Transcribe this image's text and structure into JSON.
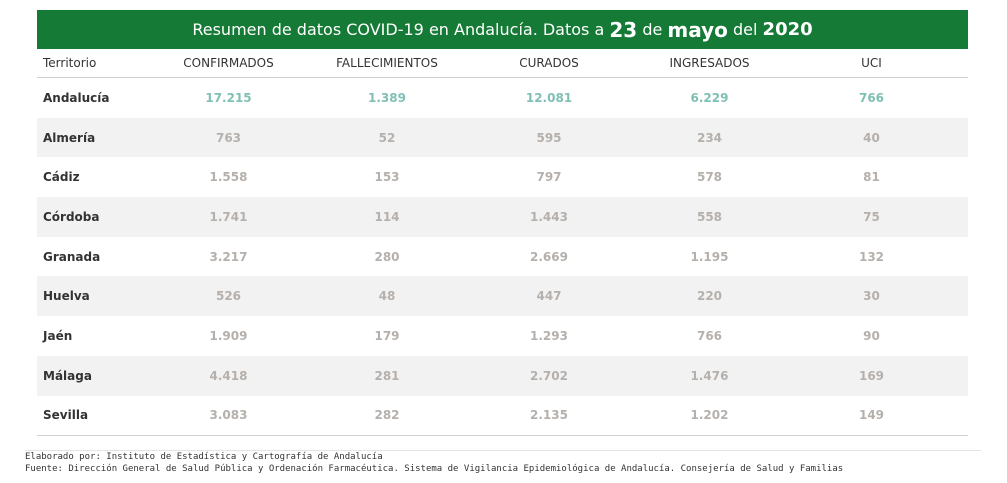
{
  "title": {
    "prefix": "Resumen de datos COVID-19 en Andalucía. Datos a",
    "day": "23",
    "de": "de",
    "month": "mayo",
    "del": "del",
    "year": "2020"
  },
  "columns": [
    "Territorio",
    "CONFIRMADOS",
    "FALLECIMIENTOS",
    "CURADOS",
    "INGRESADOS",
    "UCI"
  ],
  "rows": [
    {
      "territorio": "Andalucía",
      "confirmados": "17.215",
      "fallecimientos": "1.389",
      "curados": "12.081",
      "ingresados": "6.229",
      "uci": "766"
    },
    {
      "territorio": "Almería",
      "confirmados": "763",
      "fallecimientos": "52",
      "curados": "595",
      "ingresados": "234",
      "uci": "40"
    },
    {
      "territorio": "Cádiz",
      "confirmados": "1.558",
      "fallecimientos": "153",
      "curados": "797",
      "ingresados": "578",
      "uci": "81"
    },
    {
      "territorio": "Córdoba",
      "confirmados": "1.741",
      "fallecimientos": "114",
      "curados": "1.443",
      "ingresados": "558",
      "uci": "75"
    },
    {
      "territorio": "Granada",
      "confirmados": "3.217",
      "fallecimientos": "280",
      "curados": "2.669",
      "ingresados": "1.195",
      "uci": "132"
    },
    {
      "territorio": "Huelva",
      "confirmados": "526",
      "fallecimientos": "48",
      "curados": "447",
      "ingresados": "220",
      "uci": "30"
    },
    {
      "territorio": "Jaén",
      "confirmados": "1.909",
      "fallecimientos": "179",
      "curados": "1.293",
      "ingresados": "766",
      "uci": "90"
    },
    {
      "territorio": "Málaga",
      "confirmados": "4.418",
      "fallecimientos": "281",
      "curados": "2.702",
      "ingresados": "1.476",
      "uci": "169"
    },
    {
      "territorio": "Sevilla",
      "confirmados": "3.083",
      "fallecimientos": "282",
      "curados": "2.135",
      "ingresados": "1.202",
      "uci": "149"
    }
  ],
  "footer": {
    "elaborado": "Elaborado por: Instituto de Estadística y Cartografía de Andalucía",
    "fuente": "Fuente: Dirección General de Salud Pública y Ordenación Farmacéutica. Sistema de Vigilancia Epidemiológica de Andalucía. Consejería de Salud y Familias"
  },
  "colors": {
    "banner": "#157a36",
    "total_values": "#7fbfb4",
    "values": "#b5b0ab",
    "stripe": "#f2f2f2"
  },
  "chart_data": {
    "type": "table",
    "categories": [
      "Andalucía",
      "Almería",
      "Cádiz",
      "Córdoba",
      "Granada",
      "Huelva",
      "Jaén",
      "Málaga",
      "Sevilla"
    ],
    "series": [
      {
        "name": "CONFIRMADOS",
        "values": [
          17215,
          763,
          1558,
          1741,
          3217,
          526,
          1909,
          4418,
          3083
        ]
      },
      {
        "name": "FALLECIMIENTOS",
        "values": [
          1389,
          52,
          153,
          114,
          280,
          48,
          179,
          281,
          282
        ]
      },
      {
        "name": "CURADOS",
        "values": [
          12081,
          595,
          797,
          1443,
          2669,
          447,
          1293,
          2702,
          2135
        ]
      },
      {
        "name": "INGRESADOS",
        "values": [
          6229,
          234,
          578,
          558,
          1195,
          220,
          766,
          1476,
          1202
        ]
      },
      {
        "name": "UCI",
        "values": [
          766,
          40,
          81,
          75,
          132,
          30,
          90,
          169,
          149
        ]
      }
    ]
  }
}
